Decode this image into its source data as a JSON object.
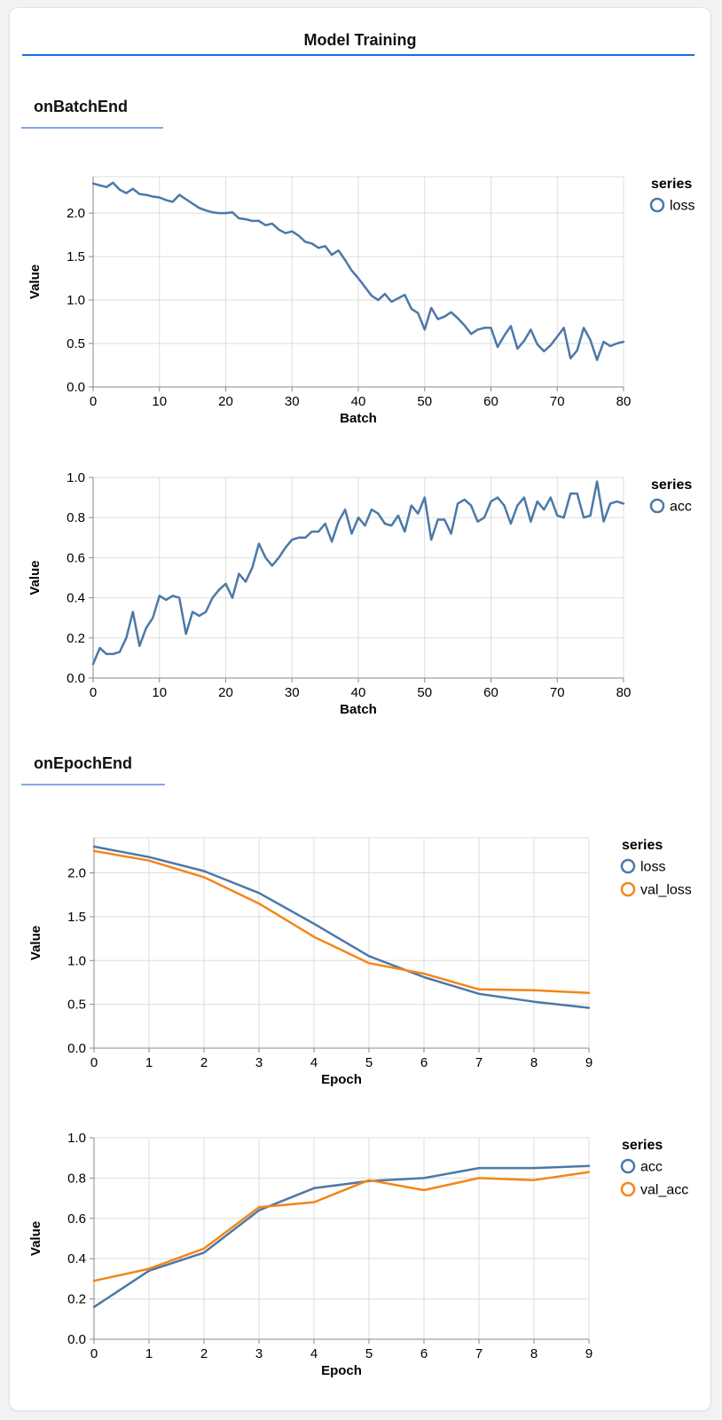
{
  "page": {
    "title": "Model Training"
  },
  "sections": [
    {
      "heading": "onBatchEnd"
    },
    {
      "heading": "onEpochEnd"
    }
  ],
  "colors": {
    "series_blue": "#4c78a8",
    "series_orange": "#f58518",
    "title_rule": "#1a6ce8",
    "section_rule": "#87a5e6",
    "grid": "#dddddd",
    "axis": "#888888",
    "card_background": "#ffffff",
    "page_background": "#f1f2f4"
  },
  "chart_data": [
    {
      "type": "line",
      "title": "",
      "xlabel": "Batch",
      "ylabel": "Value",
      "legend_title": "series",
      "legend_position": "right",
      "grid": true,
      "xlim": [
        0,
        80
      ],
      "ylim": [
        0,
        2.42
      ],
      "xticks": [
        0,
        10,
        20,
        30,
        40,
        50,
        60,
        70,
        80
      ],
      "yticks": [
        0,
        0.5,
        1,
        1.5,
        2
      ],
      "x_start": 0,
      "x_step": 1,
      "series": [
        {
          "name": "loss",
          "color": "#4c78a8",
          "values": [
            2.34,
            2.32,
            2.3,
            2.35,
            2.27,
            2.23,
            2.28,
            2.22,
            2.21,
            2.19,
            2.18,
            2.15,
            2.13,
            2.21,
            2.16,
            2.11,
            2.06,
            2.03,
            2.01,
            2.0,
            2.0,
            2.01,
            1.94,
            1.93,
            1.91,
            1.91,
            1.86,
            1.88,
            1.81,
            1.77,
            1.79,
            1.74,
            1.67,
            1.65,
            1.6,
            1.62,
            1.52,
            1.57,
            1.46,
            1.34,
            1.25,
            1.15,
            1.05,
            1.0,
            1.07,
            0.98,
            1.02,
            1.06,
            0.9,
            0.85,
            0.66,
            0.91,
            0.78,
            0.81,
            0.86,
            0.79,
            0.71,
            0.61,
            0.66,
            0.68,
            0.68,
            0.46,
            0.59,
            0.7,
            0.44,
            0.53,
            0.66,
            0.49,
            0.41,
            0.48,
            0.58,
            0.68,
            0.33,
            0.42,
            0.68,
            0.54,
            0.31,
            0.52,
            0.47,
            0.5,
            0.52
          ]
        }
      ]
    },
    {
      "type": "line",
      "title": "",
      "xlabel": "Batch",
      "ylabel": "Value",
      "legend_title": "series",
      "legend_position": "right",
      "grid": true,
      "xlim": [
        0,
        80
      ],
      "ylim": [
        0,
        1.0
      ],
      "xticks": [
        0,
        10,
        20,
        30,
        40,
        50,
        60,
        70,
        80
      ],
      "yticks": [
        0,
        0.2,
        0.4,
        0.6,
        0.8,
        1.0
      ],
      "x_start": 0,
      "x_step": 1,
      "series": [
        {
          "name": "acc",
          "color": "#4c78a8",
          "values": [
            0.07,
            0.15,
            0.12,
            0.12,
            0.13,
            0.2,
            0.33,
            0.16,
            0.25,
            0.3,
            0.41,
            0.39,
            0.41,
            0.4,
            0.22,
            0.33,
            0.31,
            0.33,
            0.4,
            0.44,
            0.47,
            0.4,
            0.52,
            0.48,
            0.55,
            0.67,
            0.6,
            0.56,
            0.6,
            0.65,
            0.69,
            0.7,
            0.7,
            0.73,
            0.73,
            0.77,
            0.68,
            0.78,
            0.84,
            0.72,
            0.8,
            0.76,
            0.84,
            0.82,
            0.77,
            0.76,
            0.81,
            0.73,
            0.86,
            0.82,
            0.9,
            0.69,
            0.79,
            0.79,
            0.72,
            0.87,
            0.89,
            0.86,
            0.78,
            0.8,
            0.88,
            0.9,
            0.86,
            0.77,
            0.86,
            0.9,
            0.78,
            0.88,
            0.84,
            0.9,
            0.81,
            0.8,
            0.92,
            0.92,
            0.8,
            0.81,
            0.98,
            0.78,
            0.87,
            0.88,
            0.87
          ]
        }
      ]
    },
    {
      "type": "line",
      "title": "",
      "xlabel": "Epoch",
      "ylabel": "Value",
      "legend_title": "series",
      "legend_position": "right",
      "grid": true,
      "xlim": [
        0,
        9
      ],
      "ylim": [
        0,
        2.4
      ],
      "xticks": [
        0,
        1,
        2,
        3,
        4,
        5,
        6,
        7,
        8,
        9
      ],
      "yticks": [
        0,
        0.5,
        1,
        1.5,
        2
      ],
      "x_start": 0,
      "x_step": 1,
      "series": [
        {
          "name": "loss",
          "color": "#4c78a8",
          "values": [
            2.3,
            2.18,
            2.02,
            1.77,
            1.42,
            1.05,
            0.81,
            0.62,
            0.53,
            0.46
          ]
        },
        {
          "name": "val_loss",
          "color": "#f58518",
          "values": [
            2.25,
            2.14,
            1.95,
            1.65,
            1.27,
            0.97,
            0.85,
            0.67,
            0.66,
            0.63
          ]
        }
      ]
    },
    {
      "type": "line",
      "title": "",
      "xlabel": "Epoch",
      "ylabel": "Value",
      "legend_title": "series",
      "legend_position": "right",
      "grid": true,
      "xlim": [
        0,
        9
      ],
      "ylim": [
        0,
        1.0
      ],
      "xticks": [
        0,
        1,
        2,
        3,
        4,
        5,
        6,
        7,
        8,
        9
      ],
      "yticks": [
        0,
        0.2,
        0.4,
        0.6,
        0.8,
        1.0
      ],
      "x_start": 0,
      "x_step": 1,
      "series": [
        {
          "name": "acc",
          "color": "#4c78a8",
          "values": [
            0.16,
            0.34,
            0.43,
            0.64,
            0.75,
            0.785,
            0.8,
            0.85,
            0.85,
            0.86
          ]
        },
        {
          "name": "val_acc",
          "color": "#f58518",
          "values": [
            0.29,
            0.35,
            0.45,
            0.655,
            0.68,
            0.79,
            0.74,
            0.8,
            0.79,
            0.83
          ]
        }
      ]
    }
  ]
}
